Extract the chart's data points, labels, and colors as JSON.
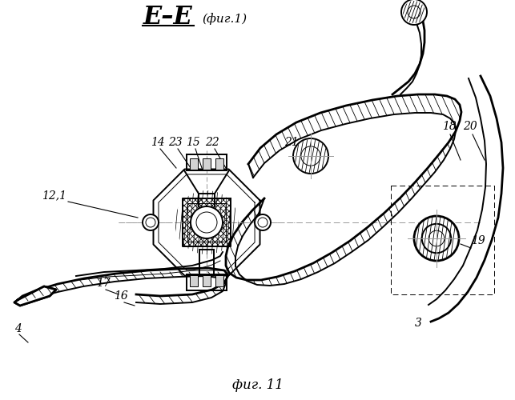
{
  "bg_color": "#ffffff",
  "line_color": "#000000",
  "gray_color": "#999999",
  "title": "E–E",
  "subtitle": "(фиг.1)",
  "fig_label": "фиг. 11"
}
